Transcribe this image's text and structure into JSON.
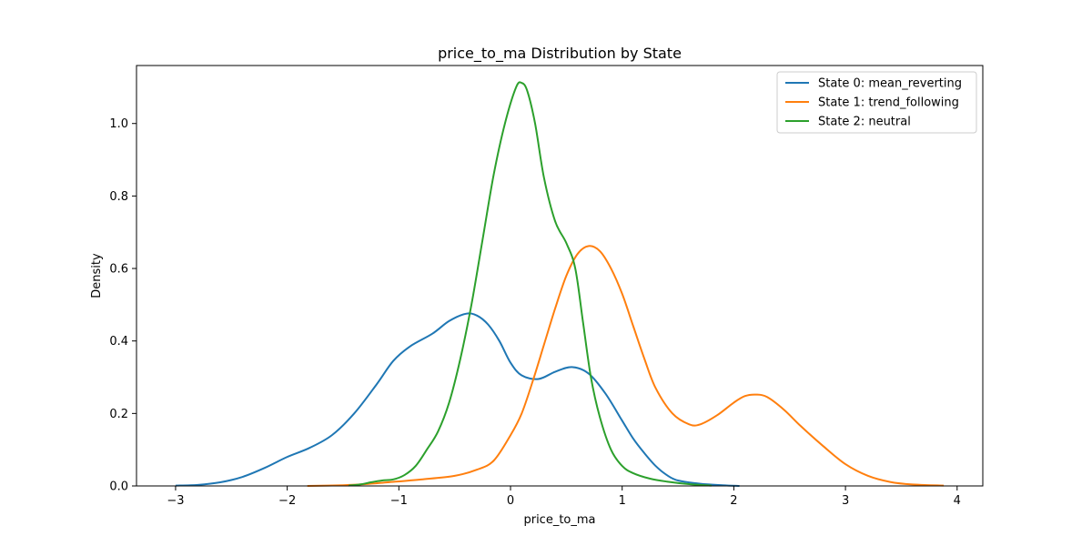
{
  "chart_data": {
    "type": "line",
    "title": "price_to_ma Distribution by State",
    "xlabel": "price_to_ma",
    "ylabel": "Density",
    "xlim": [
      -3.35,
      4.23
    ],
    "ylim": [
      0,
      1.16
    ],
    "xticks": [
      -3,
      -2,
      -1,
      0,
      1,
      2,
      3,
      4
    ],
    "xtick_labels": [
      "−3",
      "−2",
      "−1",
      "0",
      "1",
      "2",
      "3",
      "4"
    ],
    "yticks": [
      0.0,
      0.2,
      0.4,
      0.6,
      0.8,
      1.0
    ],
    "ytick_labels": [
      "0.0",
      "0.2",
      "0.4",
      "0.6",
      "0.8",
      "1.0"
    ],
    "grid": false,
    "legend_position": "top-right",
    "series": [
      {
        "name": "State 0: mean_reverting",
        "color": "#1f77b4",
        "points": [
          [
            -3.0,
            0.001
          ],
          [
            -2.8,
            0.003
          ],
          [
            -2.6,
            0.01
          ],
          [
            -2.4,
            0.025
          ],
          [
            -2.2,
            0.05
          ],
          [
            -2.0,
            0.08
          ],
          [
            -1.8,
            0.105
          ],
          [
            -1.6,
            0.14
          ],
          [
            -1.4,
            0.2
          ],
          [
            -1.2,
            0.28
          ],
          [
            -1.05,
            0.345
          ],
          [
            -0.9,
            0.385
          ],
          [
            -0.7,
            0.42
          ],
          [
            -0.55,
            0.455
          ],
          [
            -0.4,
            0.475
          ],
          [
            -0.3,
            0.47
          ],
          [
            -0.2,
            0.445
          ],
          [
            -0.1,
            0.4
          ],
          [
            0.0,
            0.34
          ],
          [
            0.1,
            0.305
          ],
          [
            0.25,
            0.295
          ],
          [
            0.4,
            0.315
          ],
          [
            0.55,
            0.328
          ],
          [
            0.7,
            0.31
          ],
          [
            0.85,
            0.255
          ],
          [
            1.0,
            0.18
          ],
          [
            1.1,
            0.13
          ],
          [
            1.2,
            0.09
          ],
          [
            1.3,
            0.055
          ],
          [
            1.4,
            0.03
          ],
          [
            1.5,
            0.015
          ],
          [
            1.7,
            0.006
          ],
          [
            1.9,
            0.002
          ],
          [
            2.05,
            0.0
          ]
        ]
      },
      {
        "name": "State 1: trend_following",
        "color": "#ff7f0e",
        "points": [
          [
            -1.82,
            0.0
          ],
          [
            -1.5,
            0.002
          ],
          [
            -1.3,
            0.005
          ],
          [
            -1.1,
            0.01
          ],
          [
            -0.8,
            0.018
          ],
          [
            -0.5,
            0.028
          ],
          [
            -0.3,
            0.045
          ],
          [
            -0.15,
            0.07
          ],
          [
            0.0,
            0.14
          ],
          [
            0.1,
            0.2
          ],
          [
            0.2,
            0.29
          ],
          [
            0.3,
            0.39
          ],
          [
            0.4,
            0.49
          ],
          [
            0.5,
            0.58
          ],
          [
            0.6,
            0.64
          ],
          [
            0.7,
            0.662
          ],
          [
            0.8,
            0.648
          ],
          [
            0.9,
            0.6
          ],
          [
            1.0,
            0.53
          ],
          [
            1.1,
            0.44
          ],
          [
            1.2,
            0.35
          ],
          [
            1.3,
            0.27
          ],
          [
            1.45,
            0.2
          ],
          [
            1.6,
            0.17
          ],
          [
            1.7,
            0.17
          ],
          [
            1.85,
            0.195
          ],
          [
            2.0,
            0.23
          ],
          [
            2.1,
            0.248
          ],
          [
            2.2,
            0.252
          ],
          [
            2.3,
            0.245
          ],
          [
            2.45,
            0.21
          ],
          [
            2.6,
            0.165
          ],
          [
            2.8,
            0.11
          ],
          [
            3.0,
            0.06
          ],
          [
            3.2,
            0.028
          ],
          [
            3.4,
            0.011
          ],
          [
            3.6,
            0.004
          ],
          [
            3.88,
            0.001
          ]
        ]
      },
      {
        "name": "State 2: neutral",
        "color": "#2ca02c",
        "points": [
          [
            -1.45,
            0.001
          ],
          [
            -1.35,
            0.004
          ],
          [
            -1.25,
            0.01
          ],
          [
            -1.15,
            0.015
          ],
          [
            -1.05,
            0.018
          ],
          [
            -0.95,
            0.03
          ],
          [
            -0.85,
            0.055
          ],
          [
            -0.75,
            0.1
          ],
          [
            -0.65,
            0.15
          ],
          [
            -0.55,
            0.23
          ],
          [
            -0.45,
            0.35
          ],
          [
            -0.35,
            0.5
          ],
          [
            -0.25,
            0.68
          ],
          [
            -0.15,
            0.86
          ],
          [
            -0.05,
            1.0
          ],
          [
            0.05,
            1.1
          ],
          [
            0.1,
            1.112
          ],
          [
            0.15,
            1.09
          ],
          [
            0.22,
            1.0
          ],
          [
            0.3,
            0.85
          ],
          [
            0.4,
            0.73
          ],
          [
            0.5,
            0.67
          ],
          [
            0.58,
            0.6
          ],
          [
            0.65,
            0.45
          ],
          [
            0.72,
            0.3
          ],
          [
            0.8,
            0.19
          ],
          [
            0.9,
            0.1
          ],
          [
            1.0,
            0.055
          ],
          [
            1.1,
            0.035
          ],
          [
            1.25,
            0.02
          ],
          [
            1.4,
            0.012
          ],
          [
            1.6,
            0.005
          ],
          [
            1.8,
            0.001
          ]
        ]
      }
    ]
  }
}
